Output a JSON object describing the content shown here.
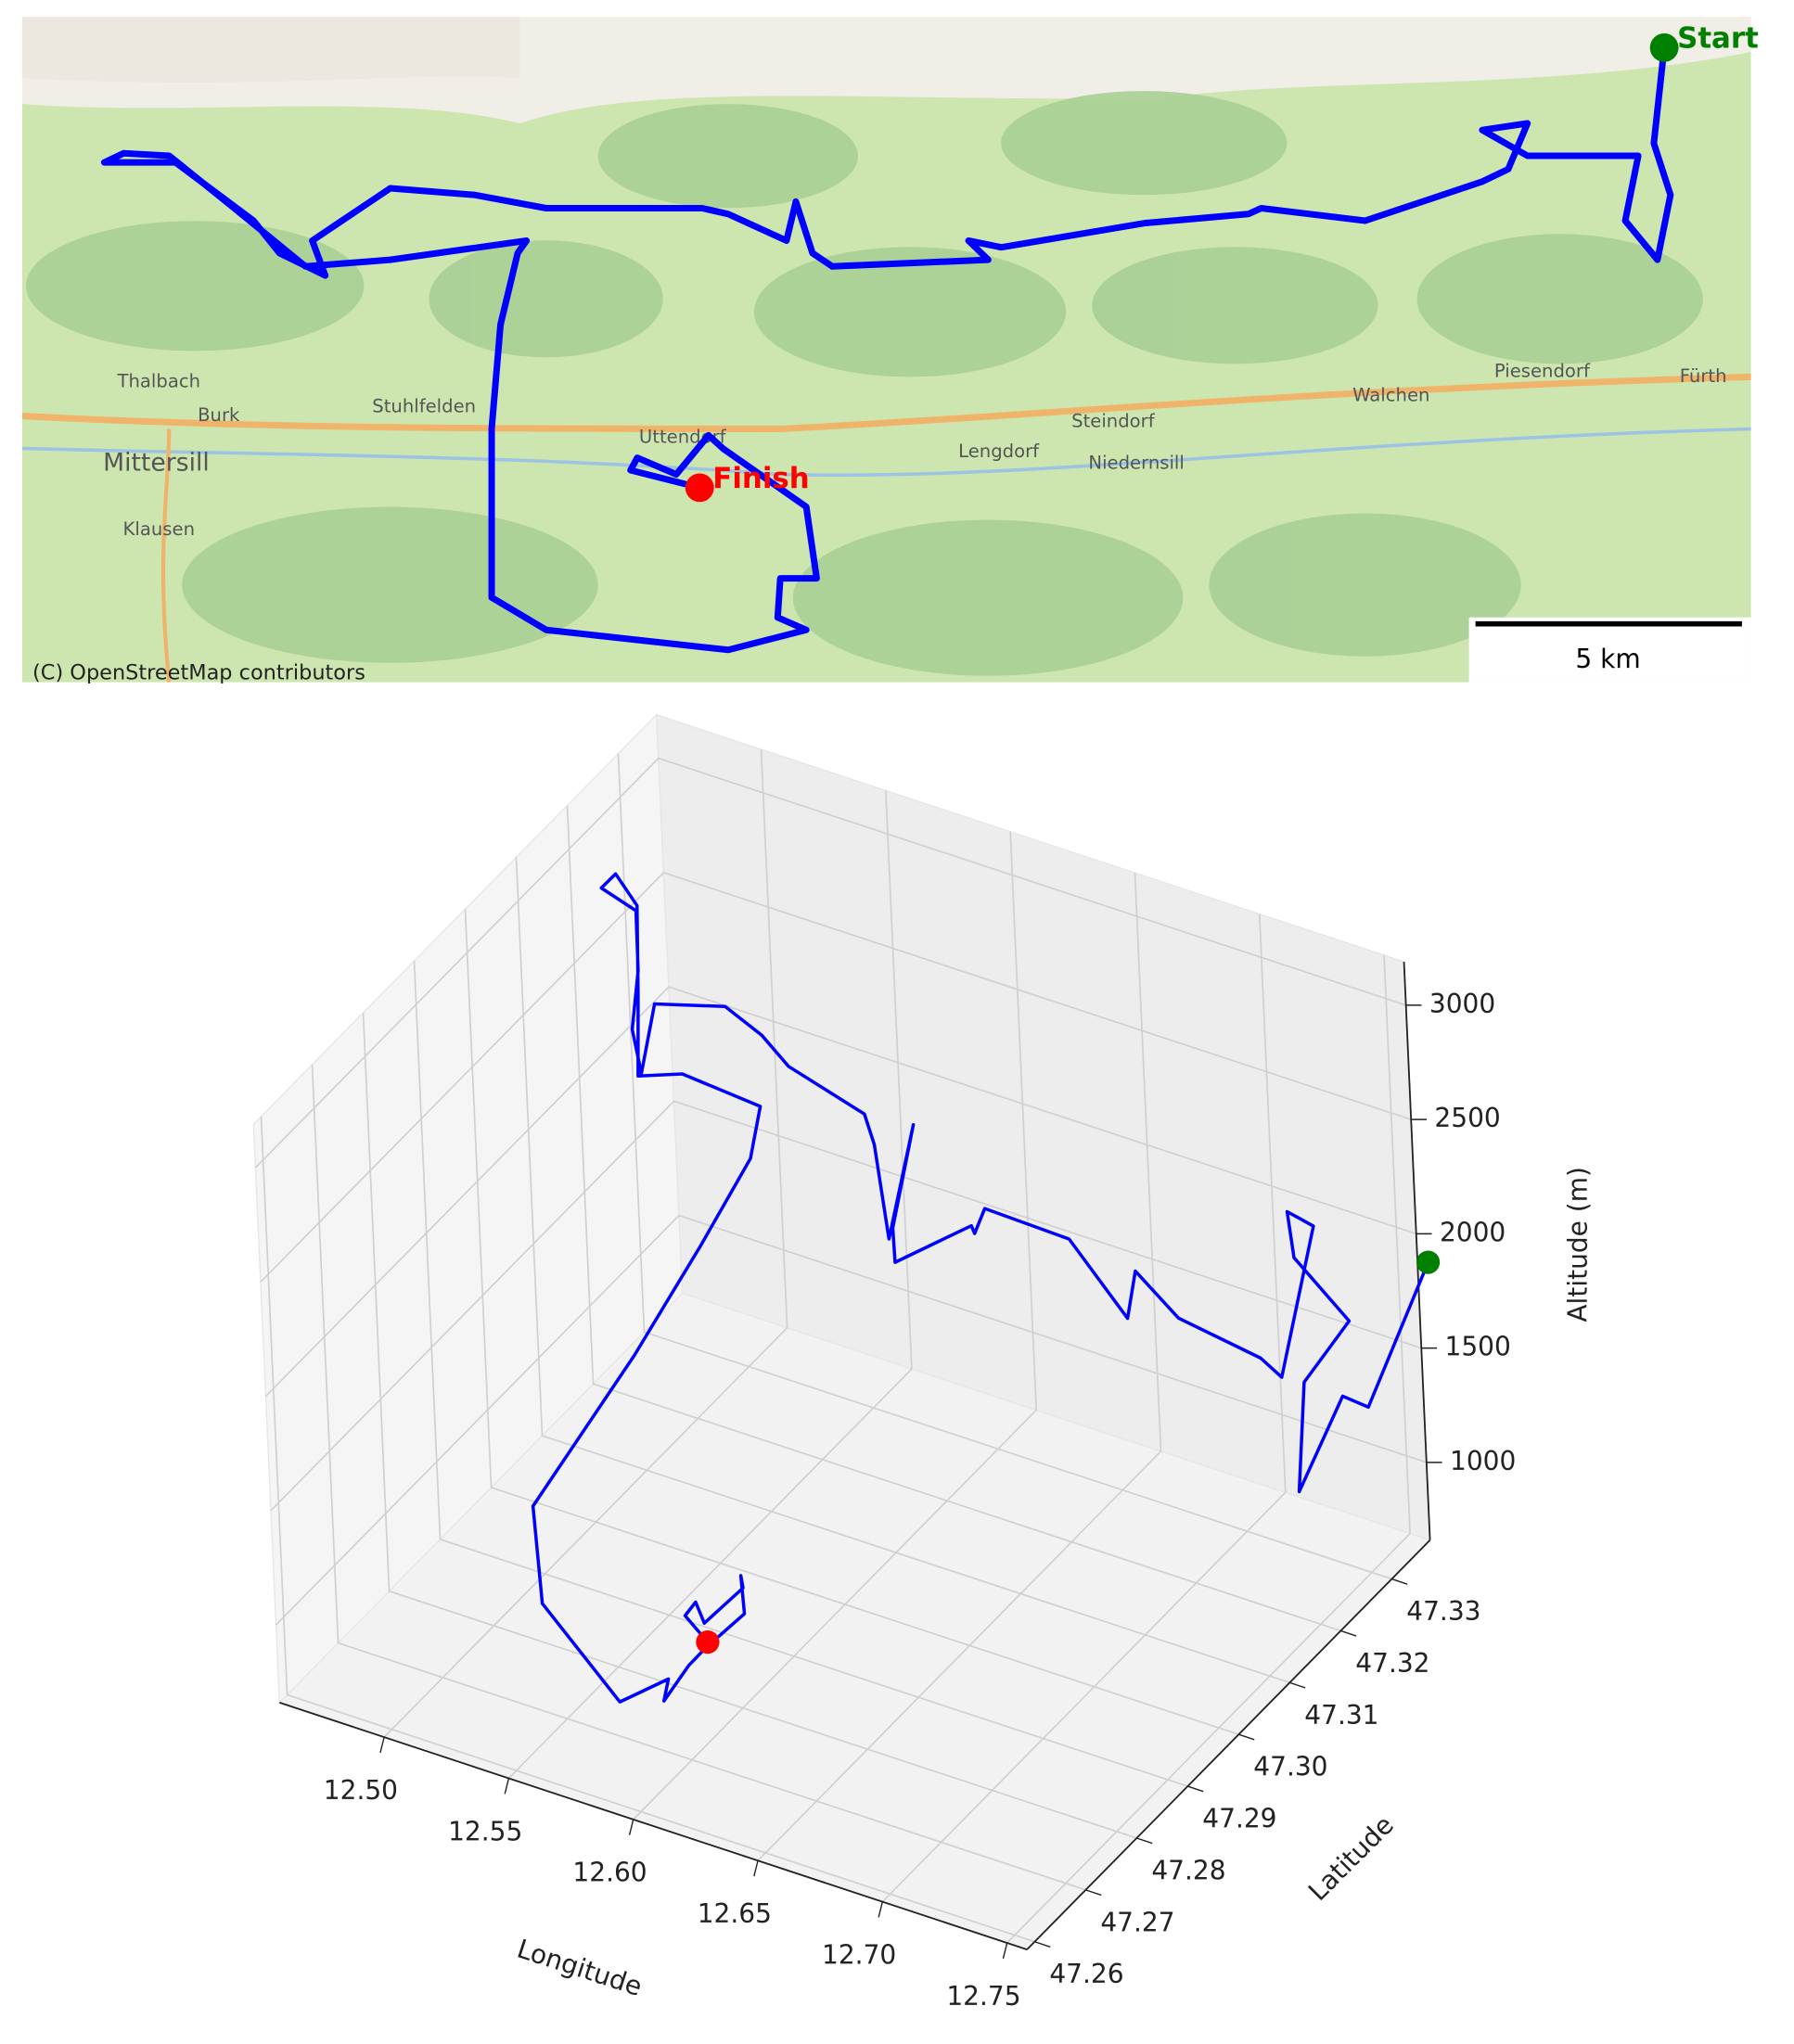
{
  "chart_data": [
    {
      "type": "map",
      "attribution": "(C) OpenStreetMap contributors",
      "scale_label": "5 km",
      "xlim": [
        12.46,
        12.7925
      ],
      "ylim": [
        47.255,
        47.335
      ],
      "track": {
        "color": "blue",
        "lon": [
          12.7758,
          12.7738,
          12.777,
          12.7745,
          12.7683,
          12.7708,
          12.7495,
          12.7408,
          12.7495,
          12.7458,
          12.7408,
          12.7183,
          12.6983,
          12.6958,
          12.6758,
          12.6483,
          12.642,
          12.6458,
          12.6158,
          12.612,
          12.6088,
          12.607,
          12.5958,
          12.5908,
          12.5608,
          12.547,
          12.5308,
          12.5158,
          12.5183,
          12.5095,
          12.5045,
          12.4895,
          12.4758,
          12.4795,
          12.4883,
          12.5008,
          12.5145,
          12.5308,
          12.557,
          12.5553,
          12.552,
          12.5503,
          12.5503,
          12.5608,
          12.5958,
          12.6108,
          12.6053,
          12.6058,
          12.6128,
          12.6108,
          12.5948,
          12.592,
          12.5858,
          12.5783,
          12.577,
          12.5903
        ],
        "lat": [
          47.3313,
          47.3198,
          47.3136,
          47.3058,
          47.3105,
          47.3183,
          47.3183,
          47.3214,
          47.3222,
          47.3167,
          47.3152,
          47.3105,
          47.312,
          47.3113,
          47.3102,
          47.3073,
          47.3081,
          47.3058,
          47.305,
          47.3066,
          47.3128,
          47.3081,
          47.3113,
          47.312,
          47.312,
          47.3136,
          47.3144,
          47.3081,
          47.3039,
          47.3066,
          47.3105,
          47.3175,
          47.3175,
          47.3186,
          47.3183,
          47.312,
          47.305,
          47.3058,
          47.3081,
          47.3066,
          47.298,
          47.2855,
          47.2652,
          47.2613,
          47.2589,
          47.2613,
          47.2628,
          47.2675,
          47.2675,
          47.2761,
          47.2831,
          47.2847,
          47.28,
          47.282,
          47.2805,
          47.2784
        ]
      },
      "markers": [
        {
          "label": "Start",
          "color": "green",
          "lon": 12.7758,
          "lat": 47.3313
        },
        {
          "label": "Finish",
          "color": "red",
          "lon": 12.5903,
          "lat": 47.2784
        }
      ],
      "places": [
        {
          "name": "Thalbach",
          "lon": 12.4863,
          "lat": 47.2911
        },
        {
          "name": "Burk",
          "lon": 12.4978,
          "lat": 47.287
        },
        {
          "name": "Stuhlfelden",
          "lon": 12.5373,
          "lat": 47.2881
        },
        {
          "name": "Mittersill",
          "lon": 12.4858,
          "lat": 47.2813
        },
        {
          "name": "Klausen",
          "lon": 12.4863,
          "lat": 47.2733
        },
        {
          "name": "Uttendorf",
          "lon": 12.587,
          "lat": 47.2844
        },
        {
          "name": "Lengdorf",
          "lon": 12.6478,
          "lat": 47.2827
        },
        {
          "name": "Steindorf",
          "lon": 12.6698,
          "lat": 47.2863
        },
        {
          "name": "Niedernsill",
          "lon": 12.6743,
          "lat": 47.2813
        },
        {
          "name": "Walchen",
          "lon": 12.7233,
          "lat": 47.2894
        },
        {
          "name": "Piesendorf",
          "lon": 12.7523,
          "lat": 47.2923
        },
        {
          "name": "Fürth",
          "lon": 12.7833,
          "lat": 47.2917
        }
      ]
    },
    {
      "type": "line3d",
      "xlabel": "Longitude",
      "ylabel": "Latitude",
      "zlabel": "Altitude (m)",
      "xlim": [
        12.458,
        12.758
      ],
      "ylim": [
        47.2585,
        47.3375
      ],
      "zlim": [
        660,
        3190
      ],
      "xticks": [
        {
          "value": 12.5,
          "label": "12.50"
        },
        12.55,
        {
          "value": 12.6,
          "label": "12.60"
        },
        12.65,
        {
          "value": 12.7,
          "label": "12.70"
        },
        12.75
      ],
      "yticks": [
        47.26,
        47.27,
        47.28,
        47.29,
        {
          "value": 47.3,
          "label": "47.30"
        },
        47.31,
        47.32,
        47.33
      ],
      "zticks": [
        1000,
        1500,
        2000,
        2500,
        3000
      ],
      "series": [
        {
          "color": "blue",
          "x": [
            12.7758,
            12.7738,
            12.777,
            12.7745,
            12.7683,
            12.7708,
            12.7495,
            12.7408,
            12.7495,
            12.7458,
            12.7408,
            12.7183,
            12.6983,
            12.6958,
            12.6758,
            12.6483,
            12.642,
            12.6458,
            12.6158,
            12.612,
            12.6088,
            12.607,
            12.5958,
            12.5908,
            12.5608,
            12.547,
            12.5308,
            12.5158,
            12.5183,
            12.5095,
            12.5045,
            12.4895,
            12.4758,
            12.4795,
            12.4883,
            12.5008,
            12.5145,
            12.5308,
            12.557,
            12.5553,
            12.552,
            12.5503,
            12.5503,
            12.5608,
            12.5958,
            12.6108,
            12.6053,
            12.6058,
            12.6128,
            12.6108,
            12.5948,
            12.592,
            12.5858,
            12.5783,
            12.577,
            12.5903
          ],
          "y": [
            47.3313,
            47.3198,
            47.3136,
            47.3058,
            47.3105,
            47.3183,
            47.3183,
            47.3214,
            47.3222,
            47.3167,
            47.3152,
            47.3105,
            47.312,
            47.3113,
            47.3102,
            47.3073,
            47.3081,
            47.3058,
            47.305,
            47.3066,
            47.3128,
            47.3081,
            47.3113,
            47.312,
            47.312,
            47.3136,
            47.3144,
            47.3081,
            47.3039,
            47.3066,
            47.3105,
            47.3175,
            47.3175,
            47.3186,
            47.3183,
            47.312,
            47.305,
            47.3058,
            47.3081,
            47.3066,
            47.298,
            47.2855,
            47.2652,
            47.2613,
            47.2589,
            47.2613,
            47.2628,
            47.2675,
            47.2675,
            47.2761,
            47.2831,
            47.2847,
            47.28,
            47.282,
            47.2805,
            47.2784
          ],
          "z": [
            2080,
            1700,
            1900,
            1650,
            2000,
            2100,
            2300,
            2400,
            2350,
            1800,
            1900,
            2100,
            2200,
            2000,
            2300,
            2400,
            2250,
            2350,
            2100,
            2200,
            2500,
            2100,
            2400,
            2500,
            2600,
            2650,
            2700,
            2800,
            2600,
            2700,
            2850,
            2900,
            2950,
            3000,
            2900,
            2700,
            2550,
            2600,
            2500,
            2300,
            2100,
            1900,
            1700,
            1400,
            1150,
            1250,
            1100,
            1150,
            1250,
            1200,
            1150,
            1050,
            980,
            1000,
            970,
            950
          ]
        }
      ],
      "points": [
        {
          "color": "green",
          "x": 12.7758,
          "y": 47.3313,
          "z": 2080
        },
        {
          "color": "red",
          "x": 12.5903,
          "y": 47.2784,
          "z": 950
        }
      ]
    }
  ]
}
